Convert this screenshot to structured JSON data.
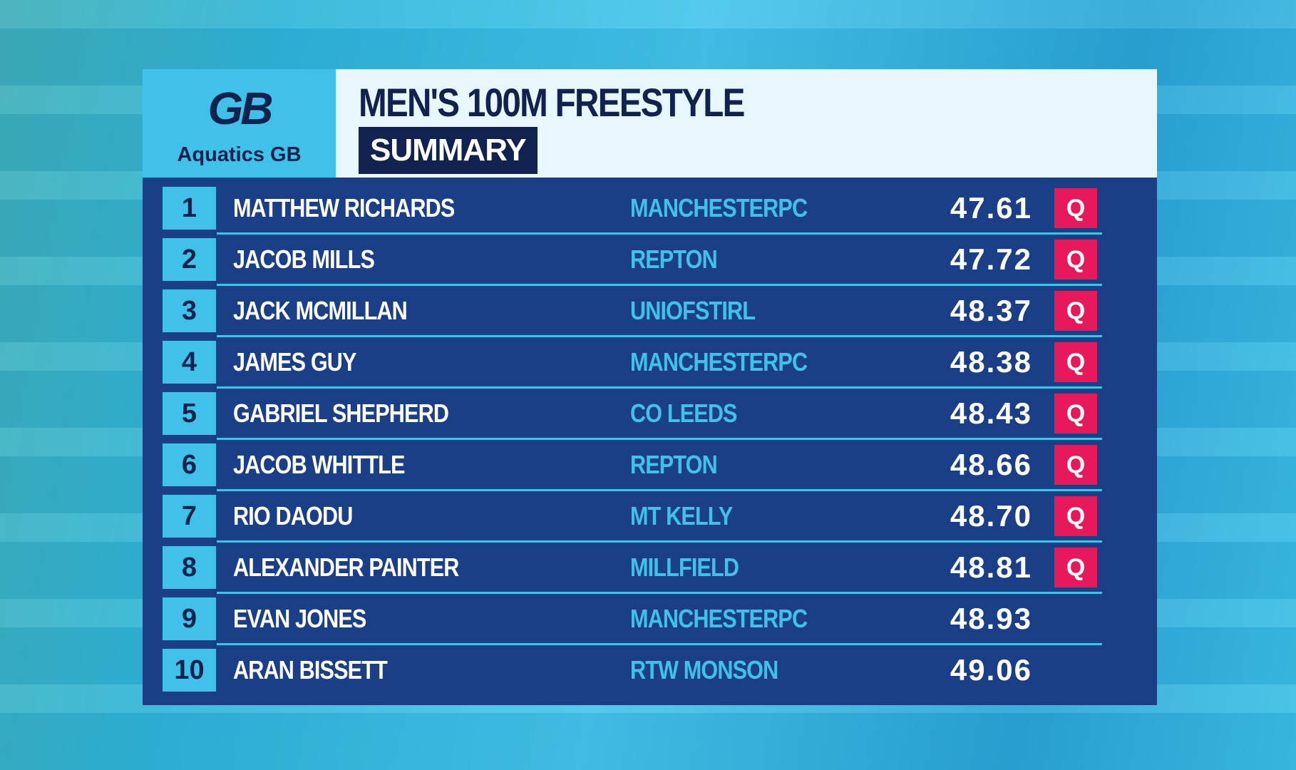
{
  "header": {
    "logo_mark": "GB",
    "logo_text": "Aquatics GB",
    "title": "MEN'S 100M FREESTYLE",
    "subtitle": "SUMMARY"
  },
  "table": {
    "rows": [
      [
        "1",
        "MATTHEW RICHARDS",
        "MANCHESTERPC",
        "47.61",
        "Q"
      ],
      [
        "2",
        "JACOB MILLS",
        "REPTON",
        "47.72",
        "Q"
      ],
      [
        "3",
        "JACK MCMILLAN",
        "UNIOFSTIRL",
        "48.37",
        "Q"
      ],
      [
        "4",
        "JAMES GUY",
        "MANCHESTERPC",
        "48.38",
        "Q"
      ],
      [
        "5",
        "GABRIEL SHEPHERD",
        "CO LEEDS",
        "48.43",
        "Q"
      ],
      [
        "6",
        "JACOB WHITTLE",
        "REPTON",
        "48.66",
        "Q"
      ],
      [
        "7",
        "RIO DAODU",
        "MT KELLY",
        "48.70",
        "Q"
      ],
      [
        "8",
        "ALEXANDER PAINTER",
        "MILLFIELD",
        "48.81",
        "Q"
      ],
      [
        "9",
        "EVAN JONES",
        "MANCHESTERPC",
        "48.93"
      ],
      [
        "10",
        "ARAN BISSETT",
        "RTW MONSON",
        "49.06"
      ]
    ]
  }
}
